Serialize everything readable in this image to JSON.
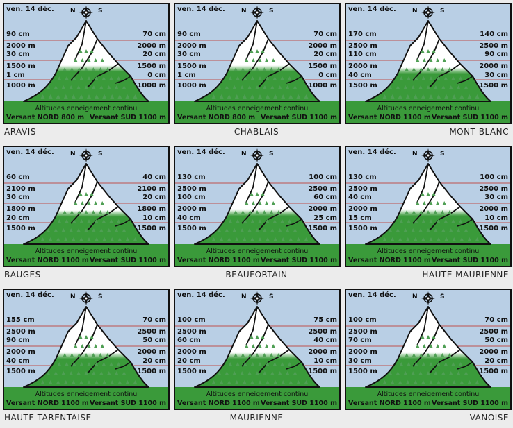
{
  "caption": "Altitudes enneigement continu",
  "compass": {
    "north": "N",
    "south": "S",
    "icon": "compass-rose-icon"
  },
  "colors": {
    "sky": "#b9cfe5",
    "grass": "#3a9a3a",
    "snow": "#ffffff",
    "line": "#c0504d",
    "border": "#111111"
  },
  "panels": [
    {
      "region": "ARAVIS",
      "region_align": "left",
      "date": "ven. 14 déc.",
      "left": [
        "90 cm",
        "2000 m",
        "30 cm",
        "1500 m",
        "1 cm",
        "1000 m"
      ],
      "right": [
        "70 cm",
        "2000 m",
        "20 cm",
        "1500 m",
        "0 cm",
        "1000 m"
      ],
      "north_foot": "Versant NORD 800 m",
      "south_foot": "Versant SUD 1100 m",
      "snowline": 0.35
    },
    {
      "region": "CHABLAIS",
      "region_align": "center",
      "date": "ven. 14 déc.",
      "left": [
        "90 cm",
        "2000 m",
        "30 cm",
        "1500 m",
        "1 cm",
        "1000 m"
      ],
      "right": [
        "70 cm",
        "2000 m",
        "20 cm",
        "1500 m",
        "0 cm",
        "1000 m"
      ],
      "north_foot": "Versant NORD 800 m",
      "south_foot": "Versant SUD 1100 m",
      "snowline": 0.35
    },
    {
      "region": "MONT BLANC",
      "region_align": "right",
      "date": "ven. 14 déc.",
      "left": [
        "170 cm",
        "2500 m",
        "110 cm",
        "2000 m",
        "40 cm",
        "1500 m"
      ],
      "right": [
        "140 cm",
        "2500 m",
        "90 cm",
        "2000 m",
        "30 cm",
        "1500 m"
      ],
      "north_foot": "Versant NORD 1100 m",
      "south_foot": "Versant SUD 1100 m",
      "snowline": 0.12
    },
    {
      "region": "BAUGES",
      "region_align": "left",
      "date": "ven. 14 déc.",
      "left": [
        "60 cm",
        "2100 m",
        "30 cm",
        "1800 m",
        "20 cm",
        "1500 m"
      ],
      "right": [
        "40 cm",
        "2100 m",
        "20 cm",
        "1800 m",
        "10 cm",
        "1500 m"
      ],
      "north_foot": "Versant NORD 1100 m",
      "south_foot": "Versant SUD 1100 m",
      "snowline": 0.12
    },
    {
      "region": "BEAUFORTAIN",
      "region_align": "center",
      "date": "ven. 14 déc.",
      "left": [
        "130 cm",
        "2500 m",
        "100 cm",
        "2000 m",
        "40 cm",
        "1500 m"
      ],
      "right": [
        "100 cm",
        "2500 m",
        "60 cm",
        "2000 m",
        "25 cm",
        "1500 m"
      ],
      "north_foot": "Versant NORD 1100 m",
      "south_foot": "Versant SUD 1100 m",
      "snowline": 0.2
    },
    {
      "region": "HAUTE MAURIENNE",
      "region_align": "right",
      "date": "ven. 14 déc.",
      "left": [
        "130 cm",
        "2500 m",
        "40 cm",
        "2000 m",
        "15 cm",
        "1500 m"
      ],
      "right": [
        "100 cm",
        "2500 m",
        "30 cm",
        "2000 m",
        "10 cm",
        "1500 m"
      ],
      "north_foot": "Versant NORD 1100 m",
      "south_foot": "Versant SUD 1100 m",
      "snowline": 0.2
    },
    {
      "region": "HAUTE TARENTAISE",
      "region_align": "left",
      "date": "ven. 14 déc.",
      "left": [
        "155 cm",
        "2500 m",
        "90 cm",
        "2000 m",
        "40 cm",
        "1500 m"
      ],
      "right": [
        "70 cm",
        "2500 m",
        "50 cm",
        "2000 m",
        "20 cm",
        "1500 m"
      ],
      "north_foot": "Versant NORD 1100 m",
      "south_foot": "Versant SUD 1100 m",
      "snowline": 0.2
    },
    {
      "region": "MAURIENNE",
      "region_align": "center",
      "date": "ven. 14 déc.",
      "left": [
        "100 cm",
        "2500 m",
        "60 cm",
        "2000 m",
        "20 cm",
        "1500 m"
      ],
      "right": [
        "75 cm",
        "2500 m",
        "40 cm",
        "2000 m",
        "10 cm",
        "1500 m"
      ],
      "north_foot": "Versant NORD 1100 m",
      "south_foot": "Versant SUD 1100 m",
      "snowline": 0.2
    },
    {
      "region": "VANOISE",
      "region_align": "right",
      "date": "ven. 14 déc.",
      "left": [
        "100 cm",
        "2500 m",
        "70 cm",
        "2000 m",
        "30 cm",
        "1500 m"
      ],
      "right": [
        "70 cm",
        "2500 m",
        "50 cm",
        "2000 m",
        "20 cm",
        "1500 m"
      ],
      "north_foot": "Versant NORD 1100 m",
      "south_foot": "Versant SUD 1100 m",
      "snowline": 0.2
    }
  ]
}
